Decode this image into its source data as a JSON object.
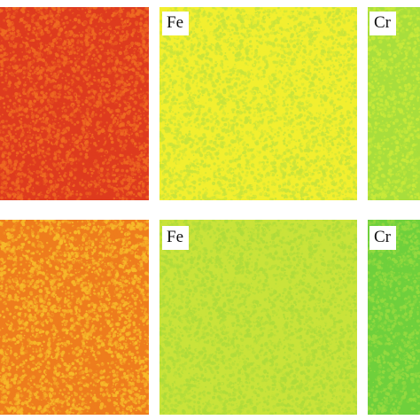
{
  "maps": [
    {
      "label": "",
      "base": "#de3b1e",
      "speckle": "#ef6b22"
    },
    {
      "label": "Fe",
      "base": "#f2ef2f",
      "speckle": "#c8e33a"
    },
    {
      "label": "Cr",
      "base": "#a8de3c",
      "speckle": "#c9ea3a"
    },
    {
      "label": "",
      "base": "#ee7d1d",
      "speckle": "#f7ba2a"
    },
    {
      "label": "Fe",
      "base": "#c9e33a",
      "speckle": "#aedb3a"
    },
    {
      "label": "Cr",
      "base": "#6fd03c",
      "speckle": "#96da40"
    }
  ]
}
